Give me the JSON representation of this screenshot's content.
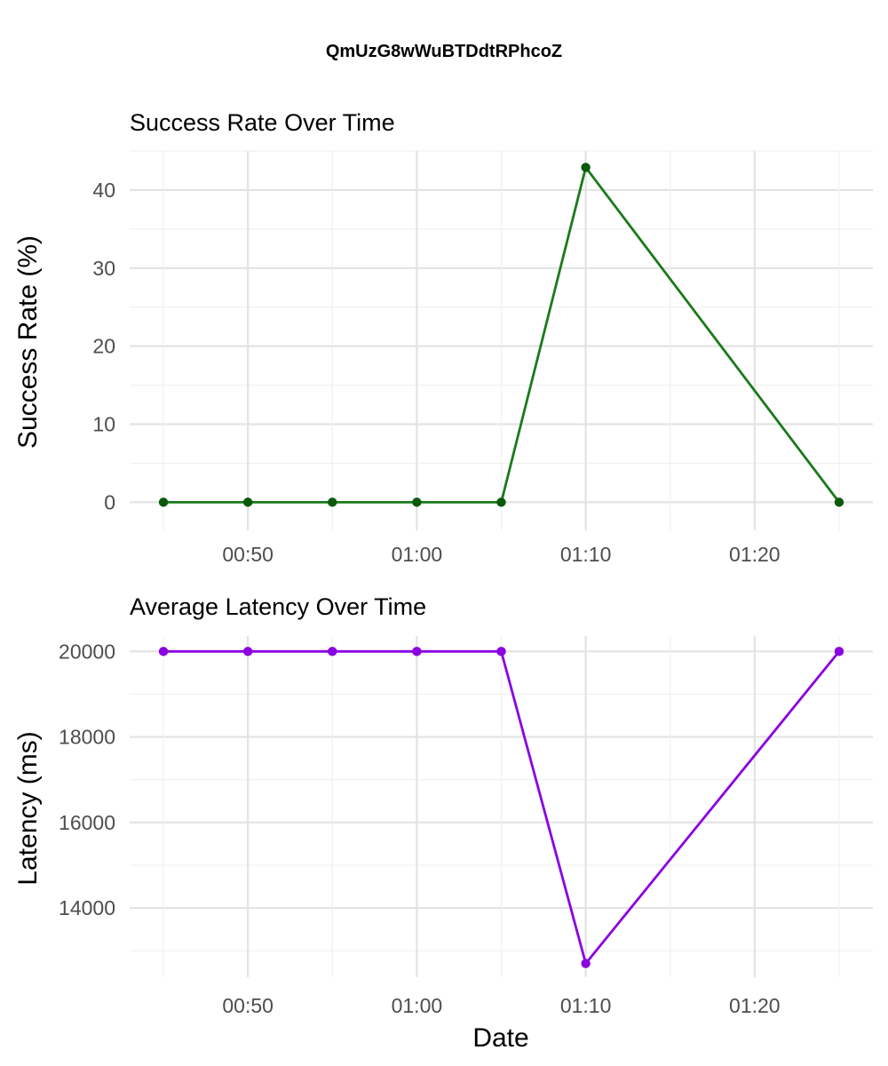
{
  "figure_title": "QmUzG8wWuBTDdtRPhcoZ",
  "xlabel": "Date",
  "chart_data": [
    {
      "type": "line",
      "title": "Success Rate Over Time",
      "xlabel": "",
      "ylabel": "Success Rate (%)",
      "x": [
        "00:45",
        "00:50",
        "00:55",
        "01:00",
        "01:05",
        "01:10",
        "01:25"
      ],
      "x_ticks": [
        "00:50",
        "01:00",
        "01:10",
        "01:20"
      ],
      "y_ticks": [
        "0",
        "10",
        "20",
        "30",
        "40"
      ],
      "ylim": [
        -3.6,
        45.0
      ],
      "xlim": [
        "00:43",
        "01:27"
      ],
      "grid": true,
      "series": [
        {
          "values": [
            0,
            0,
            0,
            0,
            0,
            42.9,
            0
          ],
          "color": "#1a7a1a",
          "marker_color": "#0b5a0b"
        }
      ]
    },
    {
      "type": "line",
      "title": "Average Latency Over Time",
      "xlabel": "Date",
      "ylabel": "Latency (ms)",
      "x": [
        "00:45",
        "00:50",
        "00:55",
        "01:00",
        "01:05",
        "01:10",
        "01:25"
      ],
      "x_ticks": [
        "00:50",
        "01:00",
        "01:10",
        "01:20"
      ],
      "y_ticks": [
        "14000",
        "16000",
        "18000",
        "20000"
      ],
      "ylim": [
        12380,
        20360
      ],
      "xlim": [
        "00:43",
        "01:27"
      ],
      "grid": true,
      "series": [
        {
          "values": [
            20000,
            20000,
            20000,
            20000,
            20000,
            12700,
            20000
          ],
          "color": "#8b00e0",
          "marker_color": "#8b00e0"
        }
      ]
    }
  ]
}
